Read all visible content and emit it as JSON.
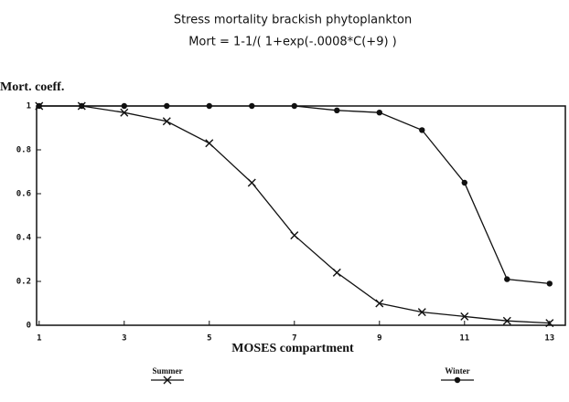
{
  "chart_data": {
    "type": "line",
    "title": "Stress mortality brackish phytoplankton",
    "subtitle": "Mort = 1-1/( 1+exp(-.0008*C(+9) )",
    "y_label": "Mort. coeff.",
    "x_label": "MOSES compartment",
    "x": [
      1,
      2,
      3,
      4,
      5,
      6,
      7,
      8,
      9,
      10,
      11,
      12,
      13
    ],
    "series": [
      {
        "name": "Summer",
        "color": "#111111",
        "marker": "x",
        "values": [
          1,
          1,
          0.97,
          0.93,
          0.83,
          0.65,
          0.41,
          0.24,
          0.1,
          0.06,
          0.04,
          0.02,
          0.01
        ]
      },
      {
        "name": "Winter",
        "color": "#111111",
        "marker": "circle",
        "values": [
          1,
          1,
          1,
          1,
          1,
          1,
          1,
          0.98,
          0.97,
          0.89,
          0.65,
          0.21,
          0.19
        ]
      }
    ],
    "xlim": [
      0.94,
      13.37
    ],
    "xticks": [
      1,
      3,
      5,
      7,
      9,
      11,
      13
    ],
    "ylim": [
      0,
      1
    ],
    "yticks": [
      0,
      0.2,
      0.4,
      0.6,
      0.8,
      1
    ],
    "grid": false
  }
}
